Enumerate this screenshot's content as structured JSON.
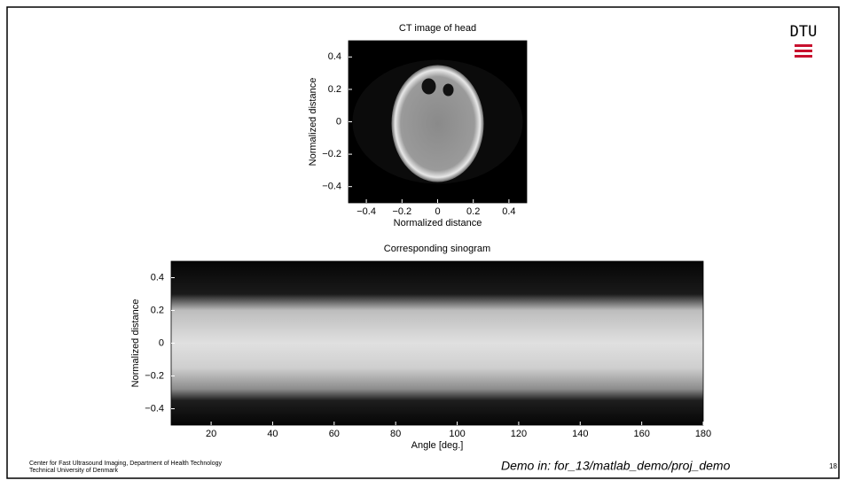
{
  "chart_data": [
    {
      "type": "image",
      "title": "CT image of head",
      "xlabel": "Normalized distance",
      "ylabel": "Normalized distance",
      "xlim": [
        -0.5,
        0.5
      ],
      "ylim": [
        -0.5,
        0.5
      ],
      "xticks": [
        {
          "value": -0.4,
          "label": "−0.4"
        },
        {
          "value": -0.2,
          "label": "−0.2"
        },
        0,
        0.2,
        0.4
      ],
      "yticks": [
        {
          "value": -0.4,
          "label": "−0.4"
        },
        {
          "value": -0.2,
          "label": "−0.2"
        },
        0,
        0.2,
        0.4
      ]
    },
    {
      "type": "image",
      "title": "Corresponding sinogram",
      "xlabel": "Angle [deg.]",
      "ylabel": "Normalized distance",
      "xlim": [
        7,
        180
      ],
      "ylim": [
        -0.5,
        0.5
      ],
      "xticks": [
        20,
        40,
        60,
        80,
        100,
        120,
        140,
        160,
        180
      ],
      "yticks": [
        {
          "value": -0.4,
          "label": "−0.4"
        },
        {
          "value": -0.2,
          "label": "−0.2"
        },
        0,
        0.2,
        0.4
      ]
    }
  ],
  "logo": {
    "text": "DTU"
  },
  "footer": {
    "org_line1": "Center for Fast Ultrasound Imaging, Department of Health Technology",
    "org_line2": "Technical University of Denmark",
    "demo": "Demo in: for_13/matlab_demo/proj_demo",
    "page": "18"
  }
}
